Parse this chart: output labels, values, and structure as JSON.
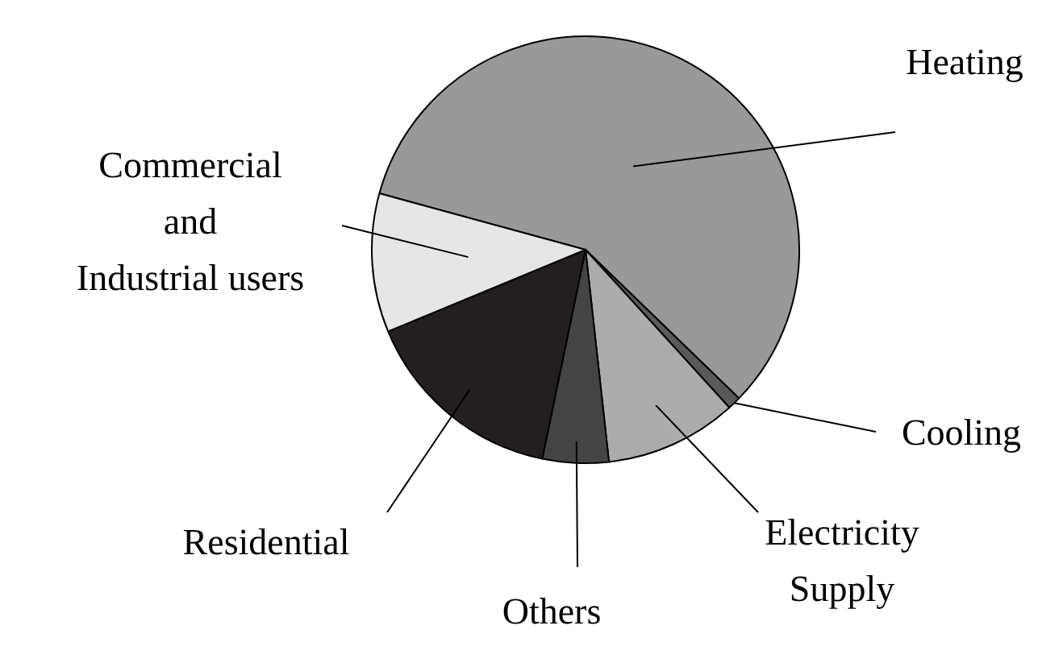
{
  "chart_data": {
    "type": "pie",
    "categories": [
      "Heating",
      "Cooling",
      "Electricity Supply",
      "Others",
      "Residential",
      "Commercial and Industrial users"
    ],
    "values": [
      58,
      1,
      10,
      5,
      15.5,
      10.5
    ],
    "colors": [
      "#999999",
      "#5a5a5a",
      "#acacac",
      "#444444",
      "#231f20",
      "#e6e6e7"
    ],
    "legend": false
  }
}
